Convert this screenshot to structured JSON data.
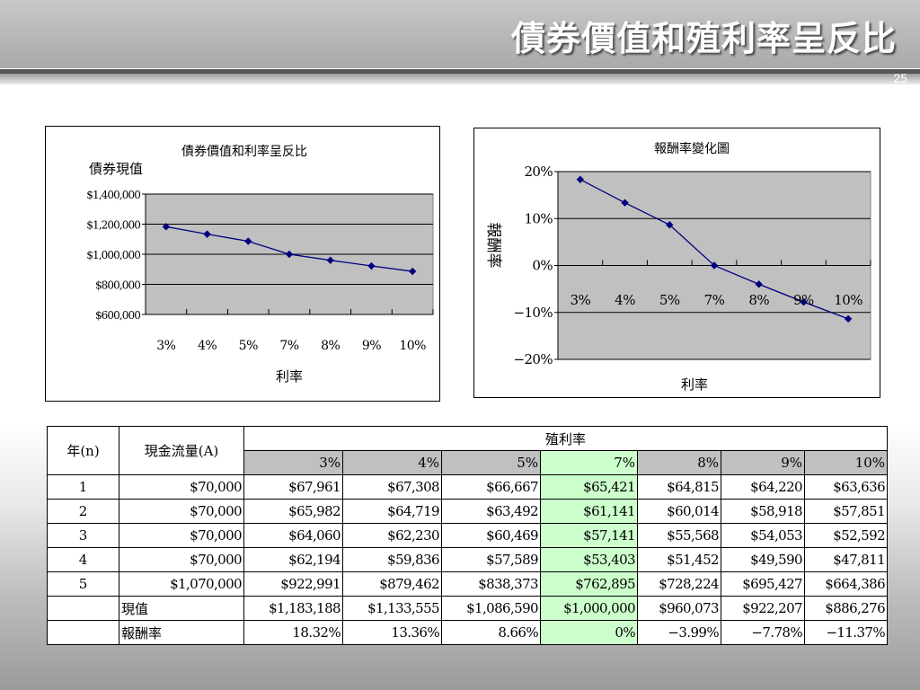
{
  "slide": {
    "title": "債券價值和殖利率呈反比",
    "page_number": "25"
  },
  "chart_data": [
    {
      "type": "line",
      "title": "債券價值和利率呈反比",
      "ylabel": "債券現值",
      "xlabel": "利率",
      "categories": [
        "3%",
        "4%",
        "5%",
        "7%",
        "8%",
        "9%",
        "10%"
      ],
      "values": [
        1183188,
        1133555,
        1086590,
        1000000,
        960073,
        922207,
        886276
      ],
      "ylim": [
        600000,
        1400000
      ],
      "yticks": [
        "$1,400,000",
        "$1,200,000",
        "$1,000,000",
        "$800,000",
        "$600,000"
      ],
      "ytick_values": [
        1400000,
        1200000,
        1000000,
        800000,
        600000
      ],
      "grid": true,
      "legend": "none",
      "plot_background": "#c0c0c0",
      "line_color": "#000080"
    },
    {
      "type": "line",
      "title": "報酬率變化圖",
      "ylabel": "報酬率",
      "xlabel": "利率",
      "categories": [
        "3%",
        "4%",
        "5%",
        "7%",
        "8%",
        "9%",
        "10%"
      ],
      "values": [
        18.32,
        13.36,
        8.66,
        0,
        -3.99,
        -7.78,
        -11.37
      ],
      "ylim": [
        -20,
        20
      ],
      "yticks": [
        "20%",
        "10%",
        "0%",
        "−10%",
        "−20%"
      ],
      "ytick_values": [
        20,
        10,
        0,
        -10,
        -20
      ],
      "grid": true,
      "legend": "none",
      "plot_background": "#c0c0c0",
      "line_color": "#000080"
    }
  ],
  "table": {
    "col_year": "年(n)",
    "col_cashflow": "現金流量(A)",
    "col_group": "殖利率",
    "rates": [
      "3%",
      "4%",
      "5%",
      "7%",
      "8%",
      "9%",
      "10%"
    ],
    "highlight_index": 3,
    "highlight_color": "#ccffcc",
    "rows": [
      {
        "year": "1",
        "cashflow": "$70,000",
        "values": [
          "$67,961",
          "$67,308",
          "$66,667",
          "$65,421",
          "$64,815",
          "$64,220",
          "$63,636"
        ]
      },
      {
        "year": "2",
        "cashflow": "$70,000",
        "values": [
          "$65,982",
          "$64,719",
          "$63,492",
          "$61,141",
          "$60,014",
          "$58,918",
          "$57,851"
        ]
      },
      {
        "year": "3",
        "cashflow": "$70,000",
        "values": [
          "$64,060",
          "$62,230",
          "$60,469",
          "$57,141",
          "$55,568",
          "$54,053",
          "$52,592"
        ]
      },
      {
        "year": "4",
        "cashflow": "$70,000",
        "values": [
          "$62,194",
          "$59,836",
          "$57,589",
          "$53,403",
          "$51,452",
          "$49,590",
          "$47,811"
        ]
      },
      {
        "year": "5",
        "cashflow": "$1,070,000",
        "values": [
          "$922,991",
          "$879,462",
          "$838,373",
          "$762,895",
          "$728,224",
          "$695,427",
          "$664,386"
        ]
      }
    ],
    "pv_label": "現值",
    "pv_values": [
      "$1,183,188",
      "$1,133,555",
      "$1,086,590",
      "$1,000,000",
      "$960,073",
      "$922,207",
      "$886,276"
    ],
    "return_label": "報酬率",
    "return_values": [
      "18.32%",
      "13.36%",
      "8.66%",
      "0%",
      "−3.99%",
      "−7.78%",
      "−11.37%"
    ]
  }
}
